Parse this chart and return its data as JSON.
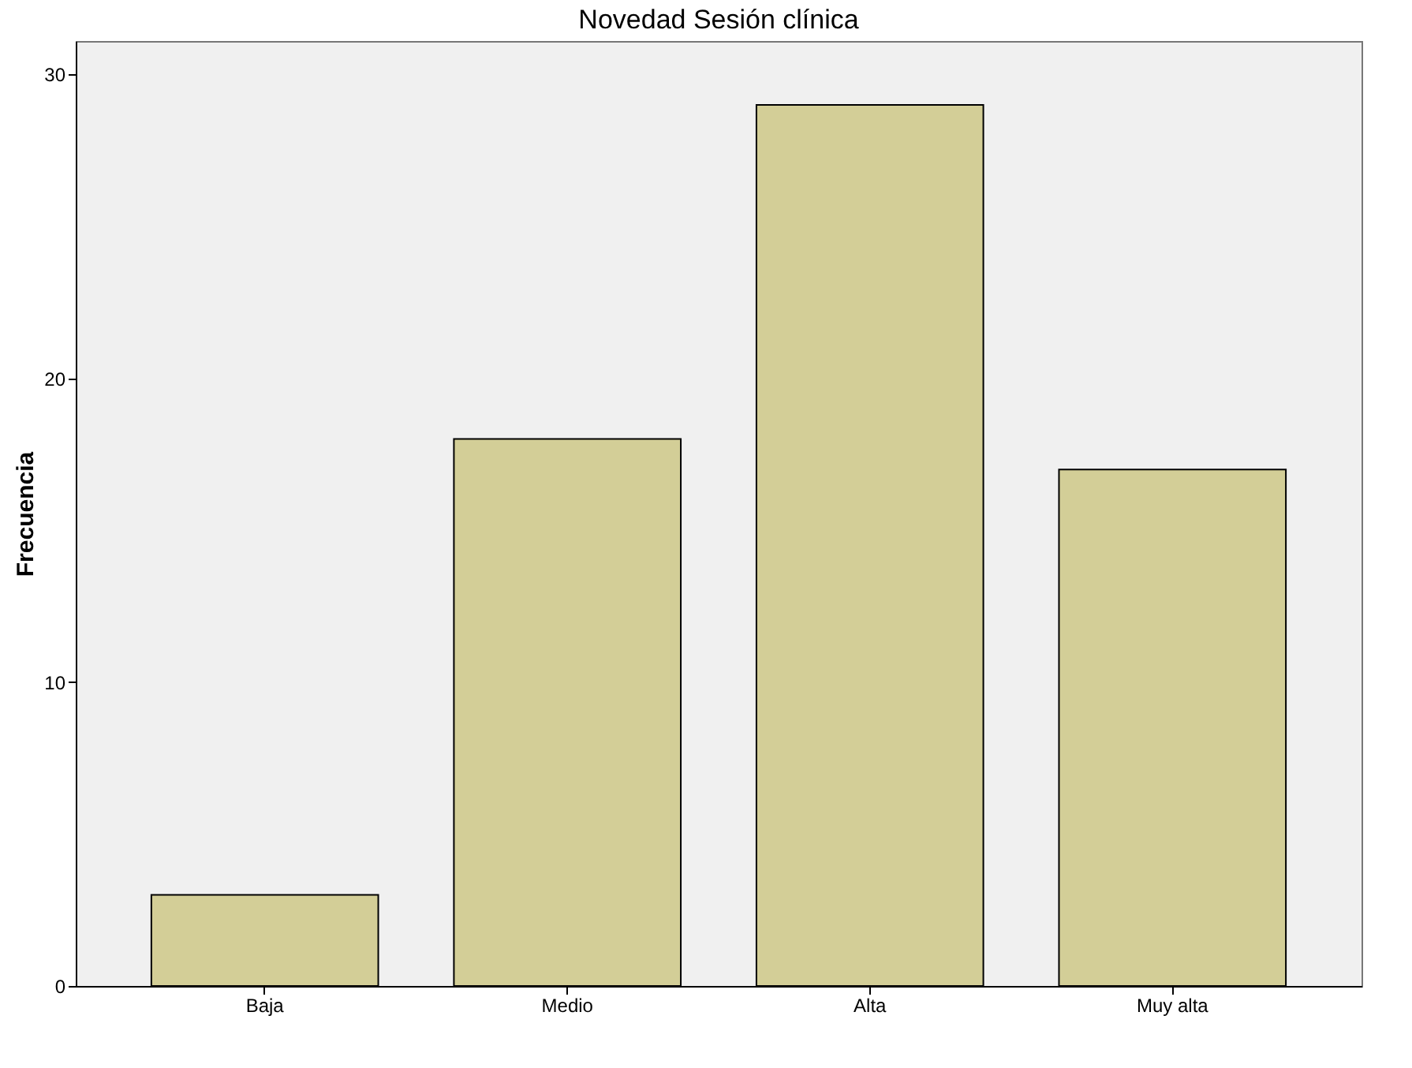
{
  "chart_data": {
    "type": "bar",
    "title": "Novedad Sesión clínica",
    "ylabel": "Frecuencia",
    "categories": [
      "Baja",
      "Medio",
      "Alta",
      "Muy alta"
    ],
    "values": [
      3,
      18,
      29,
      17
    ],
    "color": "#d3ce97",
    "ylim": [
      0,
      31.1
    ],
    "yticks": [
      0,
      10,
      20,
      30
    ],
    "grid": false
  }
}
